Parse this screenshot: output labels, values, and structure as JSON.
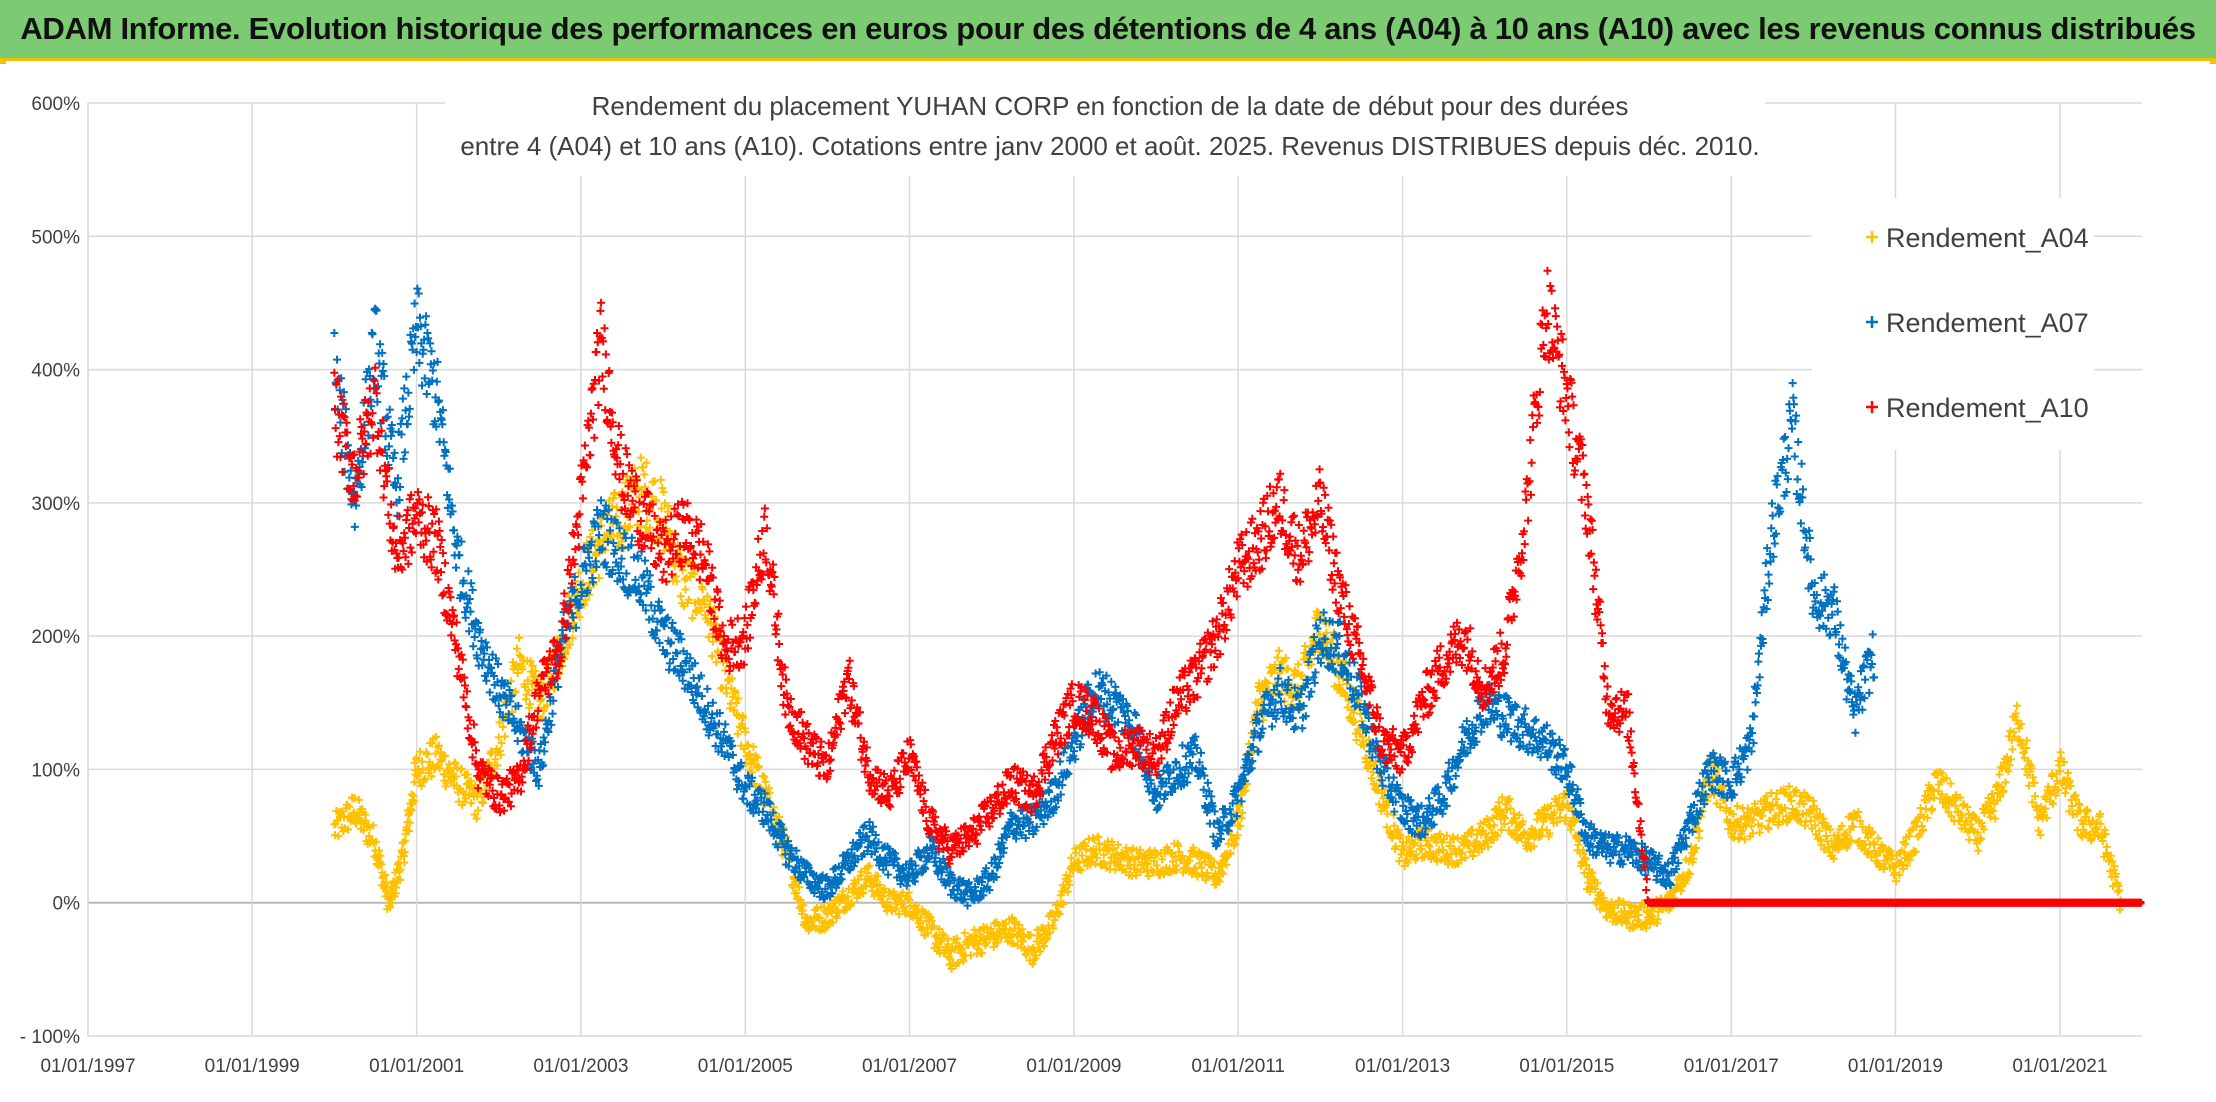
{
  "banner": {
    "text": "ADAM Informe. Evolution historique des performances en euros pour des détentions de 4 ans (A04) à 10 ans (A10) avec les revenus connus distribués",
    "background": "#7ccb72",
    "accent": "#f0c000"
  },
  "chart_data": {
    "type": "scatter",
    "title_lines": [
      "Rendement du placement YUHAN CORP en fonction de la date de début pour des durées",
      "entre 4 (A04) et 10 ans (A10). Cotations entre janv 2000 et août. 2025. Revenus DISTRIBUES depuis déc. 2010."
    ],
    "xlabel": "",
    "ylabel": "",
    "x_range": [
      "1997-01-01",
      "2022-01-01"
    ],
    "x_ticks": [
      "01/01/1997",
      "01/01/1999",
      "01/01/2001",
      "01/01/2003",
      "01/01/2005",
      "01/01/2007",
      "01/01/2009",
      "01/01/2011",
      "01/01/2013",
      "01/01/2015",
      "01/01/2017",
      "01/01/2019",
      "01/01/2021"
    ],
    "ylim": [
      -100,
      600
    ],
    "y_ticks": [
      "- 100%",
      "0%",
      "100%",
      "200%",
      "300%",
      "400%",
      "500%",
      "600%"
    ],
    "y_tick_values": [
      -100,
      0,
      100,
      200,
      300,
      400,
      500,
      600
    ],
    "grid": true,
    "legend_position": "right",
    "marker": "+",
    "series": [
      {
        "name": "Rendement_A04",
        "color": "#ffc000",
        "points": [
          [
            "2000-01-01",
            55
          ],
          [
            "2000-04-01",
            70
          ],
          [
            "2000-07-01",
            45
          ],
          [
            "2000-09-01",
            -2
          ],
          [
            "2000-11-01",
            35
          ],
          [
            "2001-01-01",
            100
          ],
          [
            "2001-04-01",
            110
          ],
          [
            "2001-07-01",
            90
          ],
          [
            "2001-10-01",
            75
          ],
          [
            "2002-01-01",
            120
          ],
          [
            "2002-04-01",
            180
          ],
          [
            "2002-07-01",
            150
          ],
          [
            "2002-10-01",
            190
          ],
          [
            "2003-01-01",
            240
          ],
          [
            "2003-04-01",
            270
          ],
          [
            "2003-07-01",
            290
          ],
          [
            "2003-10-01",
            310
          ],
          [
            "2004-01-01",
            290
          ],
          [
            "2004-04-01",
            240
          ],
          [
            "2004-07-01",
            230
          ],
          [
            "2004-10-01",
            170
          ],
          [
            "2005-01-01",
            120
          ],
          [
            "2005-04-01",
            80
          ],
          [
            "2005-07-01",
            40
          ],
          [
            "2005-10-01",
            -15
          ],
          [
            "2006-01-01",
            -10
          ],
          [
            "2006-04-01",
            5
          ],
          [
            "2006-07-01",
            20
          ],
          [
            "2006-10-01",
            0
          ],
          [
            "2007-01-01",
            0
          ],
          [
            "2007-04-01",
            -20
          ],
          [
            "2007-07-01",
            -40
          ],
          [
            "2007-10-01",
            -30
          ],
          [
            "2008-01-01",
            -25
          ],
          [
            "2008-04-01",
            -20
          ],
          [
            "2008-07-01",
            -35
          ],
          [
            "2008-10-01",
            -15
          ],
          [
            "2009-01-01",
            30
          ],
          [
            "2009-04-01",
            40
          ],
          [
            "2009-07-01",
            35
          ],
          [
            "2009-10-01",
            30
          ],
          [
            "2010-01-01",
            30
          ],
          [
            "2010-04-01",
            35
          ],
          [
            "2010-07-01",
            30
          ],
          [
            "2010-10-01",
            20
          ],
          [
            "2011-01-01",
            60
          ],
          [
            "2011-04-01",
            150
          ],
          [
            "2011-07-01",
            170
          ],
          [
            "2011-10-01",
            160
          ],
          [
            "2012-01-01",
            210
          ],
          [
            "2012-04-01",
            170
          ],
          [
            "2012-07-01",
            130
          ],
          [
            "2012-10-01",
            80
          ],
          [
            "2013-01-01",
            35
          ],
          [
            "2013-04-01",
            45
          ],
          [
            "2013-07-01",
            40
          ],
          [
            "2013-10-01",
            40
          ],
          [
            "2014-01-01",
            50
          ],
          [
            "2014-04-01",
            70
          ],
          [
            "2014-07-01",
            50
          ],
          [
            "2014-10-01",
            60
          ],
          [
            "2015-01-01",
            75
          ],
          [
            "2015-04-01",
            20
          ],
          [
            "2015-07-01",
            -5
          ],
          [
            "2015-10-01",
            -10
          ],
          [
            "2016-01-01",
            -10
          ],
          [
            "2016-04-01",
            0
          ],
          [
            "2016-07-01",
            30
          ],
          [
            "2016-10-01",
            100
          ],
          [
            "2017-01-01",
            60
          ],
          [
            "2017-04-01",
            60
          ],
          [
            "2017-07-01",
            70
          ],
          [
            "2017-10-01",
            75
          ],
          [
            "2018-01-01",
            65
          ],
          [
            "2018-04-01",
            40
          ],
          [
            "2018-07-01",
            60
          ],
          [
            "2018-10-01",
            40
          ],
          [
            "2019-01-01",
            25
          ],
          [
            "2019-04-01",
            50
          ],
          [
            "2019-07-01",
            90
          ],
          [
            "2019-10-01",
            70
          ],
          [
            "2020-01-01",
            50
          ],
          [
            "2020-04-01",
            80
          ],
          [
            "2020-07-01",
            140
          ],
          [
            "2020-10-01",
            60
          ],
          [
            "2021-01-01",
            100
          ],
          [
            "2021-04-01",
            60
          ],
          [
            "2021-07-01",
            55
          ],
          [
            "2021-10-01",
            0
          ]
        ]
      },
      {
        "name": "Rendement_A07",
        "color": "#0070c0",
        "points": [
          [
            "2000-01-01",
            400
          ],
          [
            "2000-04-01",
            300
          ],
          [
            "2000-07-01",
            420
          ],
          [
            "2000-10-01",
            310
          ],
          [
            "2001-01-01",
            430
          ],
          [
            "2001-04-01",
            380
          ],
          [
            "2001-07-01",
            260
          ],
          [
            "2001-10-01",
            200
          ],
          [
            "2002-01-01",
            160
          ],
          [
            "2002-04-01",
            130
          ],
          [
            "2002-07-01",
            100
          ],
          [
            "2002-10-01",
            190
          ],
          [
            "2003-01-01",
            240
          ],
          [
            "2003-04-01",
            280
          ],
          [
            "2003-07-01",
            260
          ],
          [
            "2003-10-01",
            240
          ],
          [
            "2004-01-01",
            200
          ],
          [
            "2004-04-01",
            180
          ],
          [
            "2004-07-01",
            150
          ],
          [
            "2004-10-01",
            120
          ],
          [
            "2005-01-01",
            85
          ],
          [
            "2005-04-01",
            70
          ],
          [
            "2005-07-01",
            40
          ],
          [
            "2005-10-01",
            20
          ],
          [
            "2006-01-01",
            10
          ],
          [
            "2006-04-01",
            30
          ],
          [
            "2006-07-01",
            50
          ],
          [
            "2006-10-01",
            30
          ],
          [
            "2007-01-01",
            20
          ],
          [
            "2007-04-01",
            40
          ],
          [
            "2007-07-01",
            15
          ],
          [
            "2007-10-01",
            5
          ],
          [
            "2008-01-01",
            20
          ],
          [
            "2008-04-01",
            60
          ],
          [
            "2008-07-01",
            60
          ],
          [
            "2008-10-01",
            80
          ],
          [
            "2009-01-01",
            120
          ],
          [
            "2009-04-01",
            160
          ],
          [
            "2009-07-01",
            150
          ],
          [
            "2009-10-01",
            130
          ],
          [
            "2010-01-01",
            80
          ],
          [
            "2010-04-01",
            100
          ],
          [
            "2010-07-01",
            110
          ],
          [
            "2010-10-01",
            50
          ],
          [
            "2011-01-01",
            80
          ],
          [
            "2011-04-01",
            130
          ],
          [
            "2011-07-01",
            160
          ],
          [
            "2011-10-01",
            140
          ],
          [
            "2012-01-01",
            200
          ],
          [
            "2012-04-01",
            190
          ],
          [
            "2012-07-01",
            150
          ],
          [
            "2012-10-01",
            100
          ],
          [
            "2013-01-01",
            70
          ],
          [
            "2013-04-01",
            60
          ],
          [
            "2013-07-01",
            80
          ],
          [
            "2013-10-01",
            120
          ],
          [
            "2014-01-01",
            150
          ],
          [
            "2014-04-01",
            140
          ],
          [
            "2014-07-01",
            130
          ],
          [
            "2014-10-01",
            120
          ],
          [
            "2015-01-01",
            100
          ],
          [
            "2015-04-01",
            50
          ],
          [
            "2015-07-01",
            40
          ],
          [
            "2015-10-01",
            40
          ],
          [
            "2016-01-01",
            30
          ],
          [
            "2016-04-01",
            20
          ],
          [
            "2016-07-01",
            60
          ],
          [
            "2016-10-01",
            100
          ],
          [
            "2017-01-01",
            90
          ],
          [
            "2017-04-01",
            120
          ],
          [
            "2017-07-01",
            280
          ],
          [
            "2017-10-01",
            360
          ],
          [
            "2018-01-01",
            230
          ],
          [
            "2018-04-01",
            220
          ],
          [
            "2018-07-01",
            140
          ],
          [
            "2018-10-01",
            190
          ]
        ]
      },
      {
        "name": "Rendement_A10",
        "color": "#ff0000",
        "points": [
          [
            "2000-01-01",
            370
          ],
          [
            "2000-04-01",
            320
          ],
          [
            "2000-07-01",
            380
          ],
          [
            "2000-10-01",
            260
          ],
          [
            "2001-01-01",
            290
          ],
          [
            "2001-04-01",
            270
          ],
          [
            "2001-07-01",
            190
          ],
          [
            "2001-10-01",
            100
          ],
          [
            "2002-01-01",
            80
          ],
          [
            "2002-04-01",
            90
          ],
          [
            "2002-07-01",
            160
          ],
          [
            "2002-10-01",
            190
          ],
          [
            "2003-01-01",
            300
          ],
          [
            "2003-04-01",
            420
          ],
          [
            "2003-07-01",
            320
          ],
          [
            "2003-10-01",
            290
          ],
          [
            "2004-01-01",
            260
          ],
          [
            "2004-04-01",
            280
          ],
          [
            "2004-07-01",
            260
          ],
          [
            "2004-10-01",
            190
          ],
          [
            "2005-01-01",
            200
          ],
          [
            "2005-04-01",
            280
          ],
          [
            "2005-07-01",
            150
          ],
          [
            "2005-10-01",
            120
          ],
          [
            "2006-01-01",
            100
          ],
          [
            "2006-04-01",
            170
          ],
          [
            "2006-07-01",
            100
          ],
          [
            "2006-10-01",
            80
          ],
          [
            "2007-01-01",
            110
          ],
          [
            "2007-04-01",
            60
          ],
          [
            "2007-07-01",
            40
          ],
          [
            "2007-10-01",
            50
          ],
          [
            "2008-01-01",
            70
          ],
          [
            "2008-04-01",
            90
          ],
          [
            "2008-07-01",
            80
          ],
          [
            "2008-10-01",
            120
          ],
          [
            "2009-01-01",
            150
          ],
          [
            "2009-04-01",
            140
          ],
          [
            "2009-07-01",
            110
          ],
          [
            "2009-10-01",
            120
          ],
          [
            "2010-01-01",
            110
          ],
          [
            "2010-04-01",
            150
          ],
          [
            "2010-07-01",
            170
          ],
          [
            "2010-10-01",
            200
          ],
          [
            "2011-01-01",
            250
          ],
          [
            "2011-04-01",
            270
          ],
          [
            "2011-07-01",
            300
          ],
          [
            "2011-10-01",
            260
          ],
          [
            "2012-01-01",
            300
          ],
          [
            "2012-04-01",
            230
          ],
          [
            "2012-07-01",
            180
          ],
          [
            "2012-10-01",
            120
          ],
          [
            "2013-01-01",
            110
          ],
          [
            "2013-04-01",
            150
          ],
          [
            "2013-07-01",
            180
          ],
          [
            "2013-10-01",
            200
          ],
          [
            "2014-01-01",
            160
          ],
          [
            "2014-04-01",
            190
          ],
          [
            "2014-07-01",
            290
          ],
          [
            "2014-10-01",
            450
          ],
          [
            "2015-01-01",
            380
          ],
          [
            "2015-04-01",
            300
          ],
          [
            "2015-07-01",
            150
          ],
          [
            "2015-10-01",
            140
          ],
          [
            "2016-01-01",
            0
          ],
          [
            "2017-01-01",
            0
          ],
          [
            "2018-01-01",
            0
          ],
          [
            "2019-01-01",
            0
          ],
          [
            "2020-01-01",
            0
          ],
          [
            "2021-01-01",
            0
          ],
          [
            "2022-01-01",
            0
          ]
        ]
      }
    ]
  }
}
